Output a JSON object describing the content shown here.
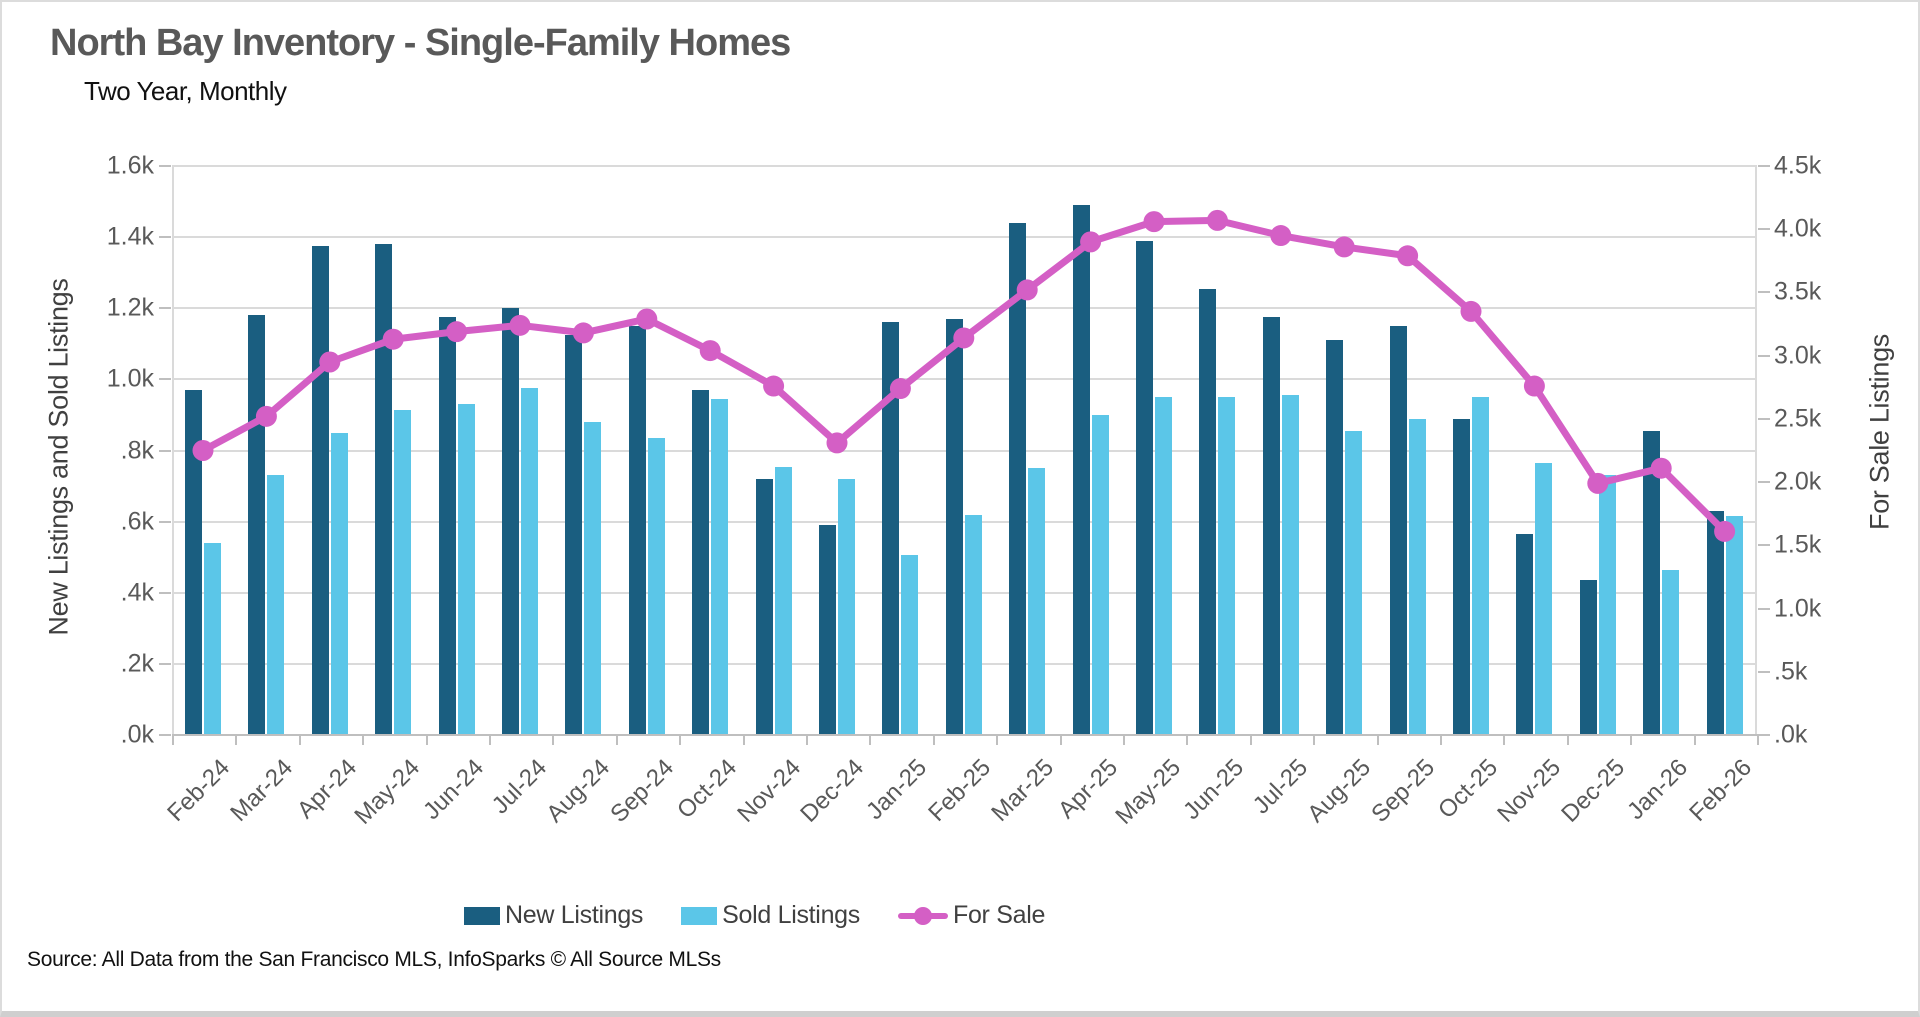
{
  "title": "North Bay Inventory - Single-Family Homes",
  "subtitle": "Two Year, Monthly",
  "source": "Source: All Data from the San Francisco MLS, InfoSparks © All Source MLSs",
  "colors": {
    "new_listings": "#1a5e80",
    "sold_listings": "#5bc6e8",
    "for_sale": "#d45fc5",
    "gridline": "#dadada",
    "axis_line": "#bfbfbf",
    "tick_text": "#595959",
    "title_text": "#595959"
  },
  "left_axis": {
    "title": "New Listings and Sold Listings",
    "tick_labels": [
      ".0k",
      ".2k",
      ".4k",
      ".6k",
      ".8k",
      "1.0k",
      "1.2k",
      "1.4k",
      "1.6k"
    ],
    "max": 1600
  },
  "right_axis": {
    "title": "For Sale Listings",
    "tick_labels": [
      ".0k",
      ".5k",
      "1.0k",
      "1.5k",
      "2.0k",
      "2.5k",
      "3.0k",
      "3.5k",
      "4.0k",
      "4.5k"
    ],
    "max": 4500
  },
  "legend": {
    "new_listings": "New Listings",
    "sold_listings": "Sold Listings",
    "for_sale": "For Sale"
  },
  "chart_data": {
    "type": "bar",
    "subtype": "grouped-bars-with-line-overlay",
    "title": "North Bay Inventory - Single-Family Homes",
    "subtitle": "Two Year, Monthly",
    "categories": [
      "Feb-24",
      "Mar-24",
      "Apr-24",
      "May-24",
      "Jun-24",
      "Jul-24",
      "Aug-24",
      "Sep-24",
      "Oct-24",
      "Nov-24",
      "Dec-24",
      "Jan-25",
      "Feb-25",
      "Mar-25",
      "Apr-25",
      "May-25",
      "Jun-25",
      "Jul-25",
      "Aug-25",
      "Sep-25",
      "Oct-25",
      "Nov-25",
      "Dec-25",
      "Jan-26",
      "Feb-26"
    ],
    "series": [
      {
        "name": "New Listings",
        "type": "bar",
        "axis": "left",
        "color": "#1a5e80",
        "values": [
          970,
          1180,
          1375,
          1380,
          1175,
          1200,
          1125,
          1150,
          970,
          720,
          590,
          1160,
          1170,
          1440,
          1490,
          1390,
          1255,
          1175,
          1110,
          1150,
          890,
          565,
          435,
          855,
          630
        ]
      },
      {
        "name": "Sold Listings",
        "type": "bar",
        "axis": "left",
        "color": "#5bc6e8",
        "values": [
          540,
          730,
          850,
          915,
          930,
          975,
          880,
          835,
          945,
          755,
          720,
          505,
          620,
          750,
          900,
          950,
          950,
          955,
          855,
          890,
          950,
          765,
          730,
          465,
          615
        ]
      },
      {
        "name": "For Sale",
        "type": "line",
        "axis": "right",
        "color": "#d45fc5",
        "values": [
          2250,
          2520,
          2950,
          3130,
          3190,
          3240,
          3180,
          3290,
          3040,
          2760,
          2310,
          2740,
          3140,
          3520,
          3900,
          4060,
          4070,
          3950,
          3860,
          3790,
          3350,
          2760,
          1990,
          2110,
          1610
        ]
      }
    ],
    "ylabel_left": "New Listings and Sold Listings",
    "ylabel_right": "For Sale Listings",
    "ylim_left": [
      0,
      1600
    ],
    "ylim_right": [
      0,
      4500
    ],
    "grid": "horizontal, every 200 on left axis",
    "legend_position": "bottom"
  }
}
